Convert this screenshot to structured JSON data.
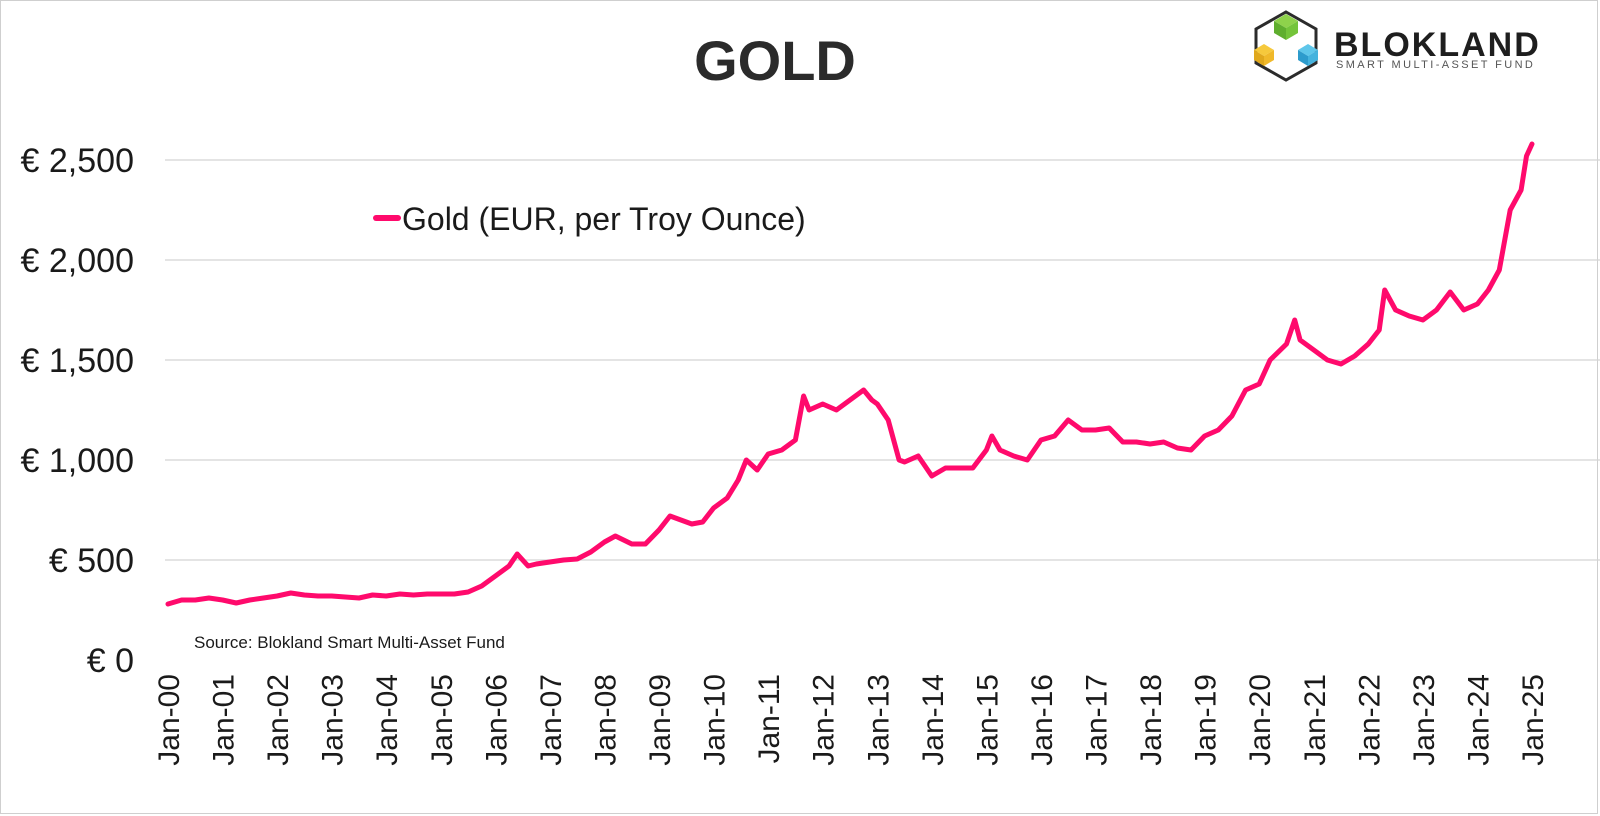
{
  "brand": {
    "name": "BLOKLAND",
    "tagline": "SMART MULTI-ASSET FUND"
  },
  "chart_data": {
    "type": "line",
    "title": "GOLD",
    "xlabel": "",
    "ylabel": "",
    "source": "Source: Blokland Smart Multi-Asset Fund",
    "legend_position": "top-left",
    "grid": "horizontal",
    "ylim": [
      0,
      2750
    ],
    "y_ticks": [
      0,
      500,
      1000,
      1500,
      2000,
      2500
    ],
    "y_tick_labels": [
      "€ 0",
      "€ 500",
      "€ 1,000",
      "€ 1,500",
      "€ 2,000",
      "€ 2,500"
    ],
    "x_tick_labels": [
      "Jan-00",
      "Jan-01",
      "Jan-02",
      "Jan-03",
      "Jan-04",
      "Jan-05",
      "Jan-06",
      "Jan-07",
      "Jan-08",
      "Jan-09",
      "Jan-10",
      "Jan-11",
      "Jan-12",
      "Jan-13",
      "Jan-14",
      "Jan-15",
      "Jan-16",
      "Jan-17",
      "Jan-18",
      "Jan-19",
      "Jan-20",
      "Jan-21",
      "Jan-22",
      "Jan-23",
      "Jan-24",
      "Jan-25"
    ],
    "series": [
      {
        "name": "Gold (EUR, per Troy Ounce)",
        "color": "#ff0a6c",
        "x": [
          2000.0,
          2000.25,
          2000.5,
          2000.75,
          2001.0,
          2001.25,
          2001.5,
          2001.75,
          2002.0,
          2002.25,
          2002.5,
          2002.75,
          2003.0,
          2003.25,
          2003.5,
          2003.75,
          2004.0,
          2004.25,
          2004.5,
          2004.75,
          2005.0,
          2005.25,
          2005.5,
          2005.75,
          2006.0,
          2006.25,
          2006.4,
          2006.6,
          2006.75,
          2007.0,
          2007.25,
          2007.5,
          2007.75,
          2008.0,
          2008.2,
          2008.5,
          2008.75,
          2009.0,
          2009.2,
          2009.4,
          2009.6,
          2009.8,
          2010.0,
          2010.25,
          2010.45,
          2010.6,
          2010.8,
          2011.0,
          2011.25,
          2011.5,
          2011.65,
          2011.75,
          2012.0,
          2012.25,
          2012.5,
          2012.75,
          2012.9,
          2013.0,
          2013.2,
          2013.4,
          2013.5,
          2013.75,
          2014.0,
          2014.25,
          2014.5,
          2014.75,
          2015.0,
          2015.1,
          2015.25,
          2015.5,
          2015.75,
          2016.0,
          2016.25,
          2016.5,
          2016.75,
          2017.0,
          2017.25,
          2017.5,
          2017.75,
          2018.0,
          2018.25,
          2018.5,
          2018.75,
          2019.0,
          2019.25,
          2019.5,
          2019.75,
          2020.0,
          2020.2,
          2020.5,
          2020.65,
          2020.75,
          2021.0,
          2021.25,
          2021.5,
          2021.75,
          2022.0,
          2022.2,
          2022.3,
          2022.5,
          2022.75,
          2023.0,
          2023.25,
          2023.5,
          2023.75,
          2024.0,
          2024.2,
          2024.4,
          2024.6,
          2024.8,
          2024.9,
          2025.0
        ],
        "values": [
          280,
          300,
          300,
          310,
          300,
          285,
          300,
          310,
          320,
          335,
          325,
          320,
          320,
          315,
          310,
          325,
          320,
          330,
          325,
          330,
          330,
          330,
          340,
          370,
          420,
          470,
          530,
          470,
          480,
          490,
          500,
          505,
          540,
          590,
          620,
          580,
          580,
          650,
          720,
          700,
          680,
          690,
          760,
          810,
          900,
          1000,
          950,
          1030,
          1050,
          1100,
          1320,
          1250,
          1280,
          1250,
          1300,
          1350,
          1300,
          1280,
          1200,
          1000,
          990,
          1020,
          920,
          960,
          960,
          960,
          1050,
          1120,
          1050,
          1020,
          1000,
          1100,
          1120,
          1200,
          1150,
          1150,
          1160,
          1090,
          1090,
          1080,
          1090,
          1060,
          1050,
          1120,
          1150,
          1220,
          1350,
          1380,
          1500,
          1580,
          1700,
          1600,
          1550,
          1500,
          1480,
          1520,
          1580,
          1650,
          1850,
          1750,
          1720,
          1700,
          1750,
          1840,
          1750,
          1780,
          1850,
          1950,
          2250,
          2350,
          2520,
          2580
        ]
      }
    ]
  }
}
